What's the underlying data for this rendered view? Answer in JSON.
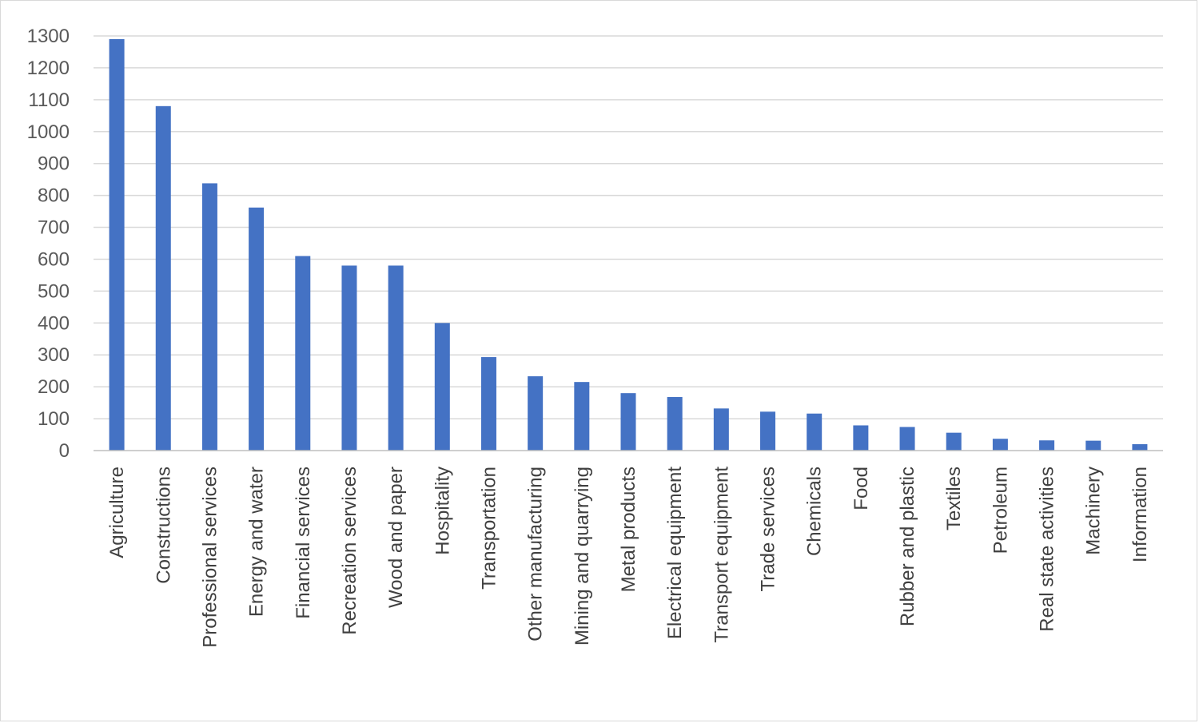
{
  "chart_data": {
    "type": "bar",
    "title": "",
    "xlabel": "",
    "ylabel": "",
    "ylim": [
      0,
      1300
    ],
    "yticks": [
      0,
      100,
      200,
      300,
      400,
      500,
      600,
      700,
      800,
      900,
      1000,
      1100,
      1200,
      1300
    ],
    "grid": true,
    "legend": "none",
    "bar_color": "#4472C4",
    "categories": [
      "Agriculture",
      "Constructions",
      "Professional services",
      "Energy and water",
      "Financial services",
      "Recreation services",
      "Wood and paper",
      "Hospitality",
      "Transportation",
      "Other manufacturing",
      "Mining and quarrying",
      "Metal products",
      "Electrical equipment",
      "Transport equipment",
      "Trade services",
      "Chemicals",
      "Food",
      "Rubber and plastic",
      "Textiles",
      "Petroleum",
      "Real state activities",
      "Machinery",
      "Information"
    ],
    "values": [
      1290,
      1080,
      838,
      762,
      610,
      580,
      580,
      400,
      293,
      233,
      215,
      180,
      168,
      132,
      122,
      116,
      79,
      74,
      56,
      37,
      32,
      31,
      20
    ]
  }
}
